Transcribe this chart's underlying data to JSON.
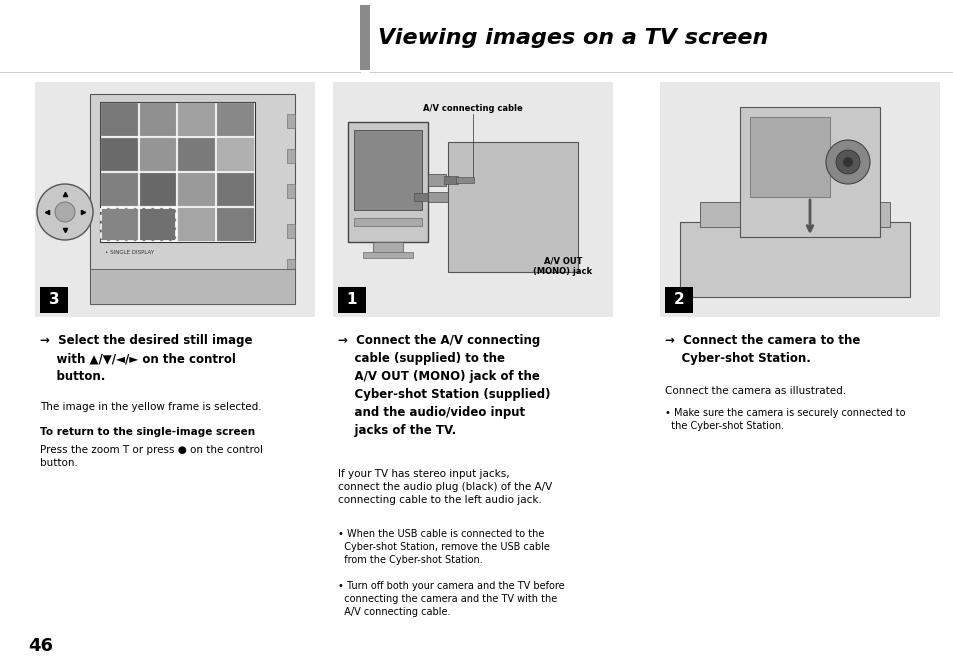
{
  "bg_color": "#ffffff",
  "title": "Viewing images on a TV screen",
  "title_bar_color": "#8a8a8a",
  "title_fontsize": 16,
  "page_number": "46",
  "panel_bg": "#e8e8e8",
  "sep_line_color": "#cccccc",
  "col1_bold_text": "→  Select the desired still image\n    with ▲/▼/◄/► on the control\n    button.",
  "col1_normal_text1": "The image in the yellow frame is selected.",
  "col1_subhead": "To return to the single-image screen",
  "col1_normal_text2": "Press the zoom T or press ● on the control\nbutton.",
  "col2_bold_text": "→  Connect the A/V connecting\n    cable (supplied) to the\n    A/V OUT (MONO) jack of the\n    Cyber-shot Station (supplied)\n    and the audio/video input\n    jacks of the TV.",
  "col2_normal_text1": "If your TV has stereo input jacks,\nconnect the audio plug (black) of the A/V\nconnecting cable to the left audio jack.",
  "col2_bullet1": "• When the USB cable is connected to the\n  Cyber-shot Station, remove the USB cable\n  from the Cyber-shot Station.",
  "col2_bullet2": "• Turn off both your camera and the TV before\n  connecting the camera and the TV with the\n  A/V connecting cable.",
  "col3_bold_text": "→  Connect the camera to the\n    Cyber-shot Station.",
  "col3_normal_text1": "Connect the camera as illustrated.",
  "col3_bullet1": "• Make sure the camera is securely connected to\n  the Cyber-shot Station.",
  "av_cable_label": "A/V connecting cable",
  "av_out_label": "A/V OUT\n(MONO) jack",
  "num1_label": "3",
  "num2_label": "1",
  "num3_label": "2"
}
